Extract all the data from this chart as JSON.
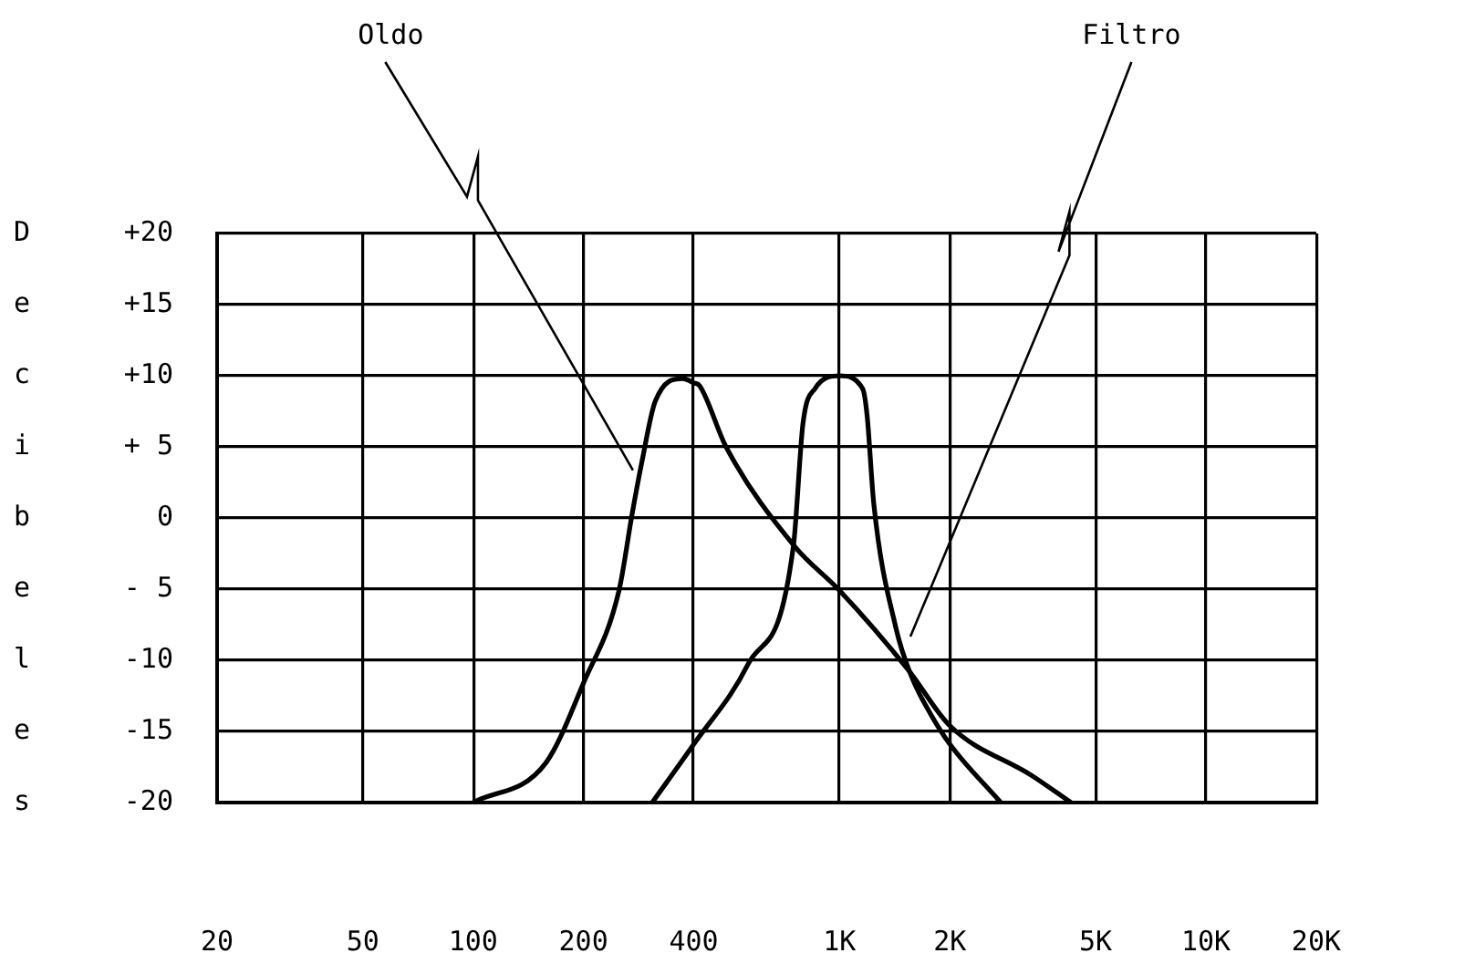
{
  "chart_data": {
    "type": "line",
    "ylabel": "Decibeles",
    "xlim": [
      20,
      20000
    ],
    "ylim": [
      -20,
      20
    ],
    "xticks": [
      20,
      50,
      100,
      200,
      400,
      {
        "value": 1000,
        "label": "1K"
      },
      {
        "value": 2000,
        "label": "2K"
      },
      {
        "value": 5000,
        "label": "5K"
      },
      {
        "value": 10000,
        "label": "10K"
      },
      {
        "value": 20000,
        "label": "20K"
      }
    ],
    "yticks": [
      {
        "value": -20,
        "label": "-20"
      },
      {
        "value": -15,
        "label": "-15"
      },
      {
        "value": -10,
        "label": "-10"
      },
      {
        "value": -5,
        "label": "- 5"
      },
      0,
      {
        "value": 5,
        "label": "+ 5"
      },
      {
        "value": 10,
        "label": "+10"
      },
      {
        "value": 15,
        "label": "+15"
      },
      {
        "value": 20,
        "label": "+20"
      }
    ],
    "grid": true,
    "log": "x",
    "legend": false,
    "marker": "none",
    "line_style": "solid",
    "series": [
      {
        "name": "Oldo",
        "color": "#000000",
        "x": [
          100,
          158,
          200,
          250,
          272,
          289,
          314,
          373,
          400,
          415,
          490,
          754,
          1000,
          1542,
          2000,
          3346,
          4282
        ],
        "values": [
          -20,
          -17.2,
          -11.6,
          -5.1,
          0.4,
          4,
          8.2,
          9.8,
          9.5,
          9.3,
          5,
          -2,
          -5.1,
          -10.7,
          -14.6,
          -18.1,
          -20
        ]
      },
      {
        "name": "Filtro",
        "color": "#000000",
        "x": [
          308,
          400,
          562,
          748,
          795,
          857,
          1000,
          1156,
          1189,
          1240,
          1424,
          1569,
          1765,
          2000,
          2755
        ],
        "values": [
          -20,
          -15.9,
          -10.3,
          -2,
          6.7,
          9.1,
          10,
          9.1,
          7.2,
          1,
          -7.7,
          -11.1,
          -13.7,
          -15.9,
          -20
        ]
      }
    ]
  }
}
